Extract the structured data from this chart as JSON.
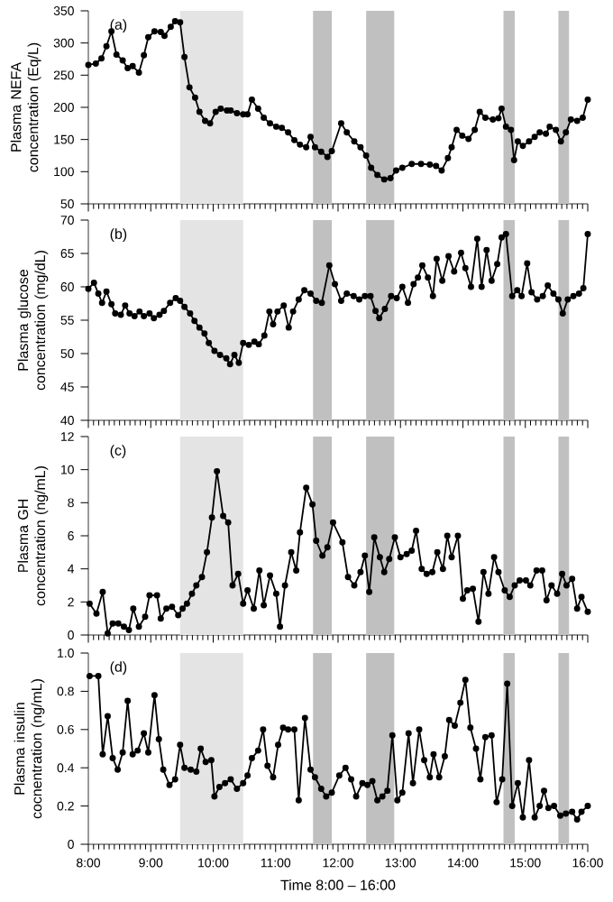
{
  "chart_data": [
    {
      "type": "line",
      "annotations": [
        "(a)"
      ],
      "ylabel": "Plasma NEFA concentration (Eq/L)",
      "xlim": [
        8,
        16
      ],
      "ylim": [
        50,
        350
      ],
      "yticks": [
        50,
        100,
        150,
        200,
        250,
        300,
        350
      ],
      "xticks": [
        {
          "value": 8,
          "label": null
        },
        {
          "value": 9,
          "label": null
        },
        {
          "value": 10,
          "label": null
        },
        {
          "value": 11,
          "label": null
        },
        {
          "value": 12,
          "label": null
        },
        {
          "value": 13,
          "label": null
        },
        {
          "value": 14,
          "label": null
        },
        {
          "value": 15,
          "label": null
        },
        {
          "value": 16,
          "label": null
        }
      ],
      "tick_labels": "y",
      "marker": "circle",
      "line_style": "solid",
      "bands": [
        {
          "axis": "x",
          "from": 9.47,
          "to": 10.48,
          "color": "#e4e4e4"
        },
        {
          "axis": "x",
          "from": 11.6,
          "to": 11.9,
          "color": "#c0c0c0"
        },
        {
          "axis": "x",
          "from": 12.45,
          "to": 12.9,
          "color": "#c0c0c0"
        },
        {
          "axis": "x",
          "from": 14.65,
          "to": 14.83,
          "color": "#c0c0c0"
        },
        {
          "axis": "x",
          "from": 15.53,
          "to": 15.7,
          "color": "#c0c0c0"
        }
      ],
      "series": [
        {
          "color": "#000000",
          "x": [
            8.0,
            8.12,
            8.21,
            8.29,
            8.37,
            8.45,
            8.55,
            8.63,
            8.71,
            8.81,
            8.89,
            8.96,
            9.06,
            9.16,
            9.22,
            9.32,
            9.39,
            9.47,
            9.54,
            9.62,
            9.71,
            9.78,
            9.87,
            9.95,
            10.04,
            10.12,
            10.22,
            10.28,
            10.38,
            10.48,
            10.55,
            10.62,
            10.72,
            10.81,
            10.91,
            11.01,
            11.1,
            11.2,
            11.3,
            11.39,
            11.49,
            11.56,
            11.63,
            11.73,
            11.83,
            11.9,
            12.05,
            12.14,
            12.26,
            12.36,
            12.45,
            12.53,
            12.63,
            12.74,
            12.84,
            12.93,
            13.03,
            13.18,
            13.33,
            13.47,
            13.57,
            13.66,
            13.76,
            13.82,
            13.9,
            13.99,
            14.09,
            14.19,
            14.27,
            14.36,
            14.48,
            14.57,
            14.62,
            14.69,
            14.77,
            14.82,
            14.88,
            14.96,
            15.06,
            15.15,
            15.23,
            15.33,
            15.39,
            15.49,
            15.57,
            15.65,
            15.73,
            15.83,
            15.92,
            16.0
          ],
          "values": [
            266,
            268,
            276,
            295,
            318,
            282,
            273,
            261,
            264,
            254,
            281,
            309,
            318,
            317,
            311,
            325,
            334,
            332,
            278,
            231,
            215,
            193,
            179,
            175,
            193,
            198,
            195,
            195,
            191,
            189,
            189,
            212,
            198,
            184,
            175,
            170,
            168,
            161,
            149,
            142,
            138,
            154,
            138,
            131,
            123,
            132,
            175,
            161,
            147,
            138,
            125,
            106,
            95,
            88,
            90,
            102,
            106,
            112,
            112,
            111,
            109,
            102,
            121,
            138,
            165,
            156,
            151,
            165,
            193,
            184,
            181,
            183,
            198,
            170,
            165,
            118,
            147,
            140,
            147,
            154,
            161,
            159,
            170,
            165,
            147,
            161,
            181,
            179,
            184,
            212
          ]
        }
      ]
    },
    {
      "type": "line",
      "annotations": [
        "(b)"
      ],
      "ylabel": "Plasma glucose concentration (mg/dL)",
      "xlim": [
        8,
        16
      ],
      "ylim": [
        40,
        70
      ],
      "yticks": [
        40,
        45,
        50,
        55,
        60,
        65,
        70
      ],
      "xticks": [
        {
          "value": 8,
          "label": null
        },
        {
          "value": 9,
          "label": null
        },
        {
          "value": 10,
          "label": null
        },
        {
          "value": 11,
          "label": null
        },
        {
          "value": 12,
          "label": null
        },
        {
          "value": 13,
          "label": null
        },
        {
          "value": 14,
          "label": null
        },
        {
          "value": 15,
          "label": null
        },
        {
          "value": 16,
          "label": null
        }
      ],
      "tick_labels": "y",
      "marker": "circle",
      "line_style": "solid",
      "bands": [
        {
          "axis": "x",
          "from": 9.47,
          "to": 10.48,
          "color": "#e4e4e4"
        },
        {
          "axis": "x",
          "from": 11.6,
          "to": 11.9,
          "color": "#c0c0c0"
        },
        {
          "axis": "x",
          "from": 12.45,
          "to": 12.9,
          "color": "#c0c0c0"
        },
        {
          "axis": "x",
          "from": 14.65,
          "to": 14.83,
          "color": "#c0c0c0"
        },
        {
          "axis": "x",
          "from": 15.53,
          "to": 15.7,
          "color": "#c0c0c0"
        }
      ],
      "series": [
        {
          "color": "#000000",
          "x": [
            8.0,
            8.09,
            8.16,
            8.22,
            8.29,
            8.37,
            8.43,
            8.52,
            8.59,
            8.66,
            8.74,
            8.82,
            8.89,
            8.98,
            9.05,
            9.14,
            9.21,
            9.31,
            9.4,
            9.47,
            9.54,
            9.63,
            9.7,
            9.78,
            9.86,
            9.93,
            10.02,
            10.11,
            10.21,
            10.27,
            10.34,
            10.41,
            10.48,
            10.57,
            10.66,
            10.73,
            10.82,
            10.9,
            10.96,
            11.03,
            11.13,
            11.21,
            11.28,
            11.37,
            11.46,
            11.56,
            11.65,
            11.74,
            11.86,
            11.95,
            12.05,
            12.14,
            12.25,
            12.34,
            12.43,
            12.52,
            12.6,
            12.66,
            12.75,
            12.85,
            12.94,
            13.03,
            13.12,
            13.21,
            13.28,
            13.35,
            13.44,
            13.52,
            13.58,
            13.67,
            13.77,
            13.86,
            13.97,
            14.04,
            14.13,
            14.23,
            14.3,
            14.38,
            14.46,
            14.55,
            14.62,
            14.69,
            14.79,
            14.87,
            14.94,
            15.03,
            15.1,
            15.19,
            15.28,
            15.36,
            15.45,
            15.53,
            15.6,
            15.68,
            15.77,
            15.86,
            15.93,
            16.0
          ],
          "values": [
            59.7,
            60.6,
            59.0,
            57.6,
            59.3,
            57.4,
            56.0,
            55.8,
            57.2,
            56.0,
            55.6,
            56.3,
            55.6,
            56.0,
            55.3,
            55.8,
            56.4,
            57.6,
            58.3,
            57.9,
            57.0,
            56.0,
            54.9,
            53.9,
            53.0,
            51.6,
            50.4,
            49.8,
            49.3,
            48.4,
            49.8,
            48.6,
            51.6,
            51.3,
            51.8,
            51.4,
            52.7,
            56.3,
            54.4,
            56.3,
            57.2,
            53.9,
            56.3,
            58.1,
            59.5,
            59.0,
            57.9,
            57.6,
            63.2,
            60.4,
            57.9,
            59.0,
            58.6,
            58.1,
            58.6,
            58.6,
            56.4,
            55.3,
            56.7,
            58.6,
            58.3,
            60.0,
            57.6,
            60.4,
            61.4,
            63.2,
            61.4,
            58.6,
            64.2,
            60.9,
            64.6,
            62.3,
            65.1,
            62.8,
            60.0,
            67.2,
            60.0,
            65.5,
            60.9,
            63.4,
            67.4,
            67.9,
            58.6,
            59.5,
            58.6,
            63.5,
            59.2,
            58.1,
            58.6,
            60.2,
            59.0,
            58.1,
            56.0,
            58.1,
            58.6,
            59.0,
            59.8,
            67.9
          ]
        }
      ]
    },
    {
      "type": "line",
      "annotations": [
        "(c)"
      ],
      "ylabel": "Plasma GH concentration (ng/mL)",
      "xlim": [
        8,
        16
      ],
      "ylim": [
        0,
        12
      ],
      "yticks": [
        0,
        2,
        4,
        6,
        8,
        10,
        12
      ],
      "xticks": [
        {
          "value": 8,
          "label": null
        },
        {
          "value": 9,
          "label": null
        },
        {
          "value": 10,
          "label": null
        },
        {
          "value": 11,
          "label": null
        },
        {
          "value": 12,
          "label": null
        },
        {
          "value": 13,
          "label": null
        },
        {
          "value": 14,
          "label": null
        },
        {
          "value": 15,
          "label": null
        },
        {
          "value": 16,
          "label": null
        }
      ],
      "tick_labels": "y",
      "marker": "circle",
      "line_style": "solid",
      "bands": [
        {
          "axis": "x",
          "from": 9.47,
          "to": 10.48,
          "color": "#e4e4e4"
        },
        {
          "axis": "x",
          "from": 11.6,
          "to": 11.9,
          "color": "#c0c0c0"
        },
        {
          "axis": "x",
          "from": 12.45,
          "to": 12.9,
          "color": "#c0c0c0"
        },
        {
          "axis": "x",
          "from": 14.65,
          "to": 14.83,
          "color": "#c0c0c0"
        },
        {
          "axis": "x",
          "from": 15.53,
          "to": 15.7,
          "color": "#c0c0c0"
        }
      ],
      "series": [
        {
          "color": "#000000",
          "x": [
            8.02,
            8.13,
            8.23,
            8.31,
            8.39,
            8.48,
            8.57,
            8.65,
            8.72,
            8.81,
            8.91,
            8.98,
            9.1,
            9.16,
            9.25,
            9.34,
            9.44,
            9.51,
            9.58,
            9.66,
            9.73,
            9.82,
            9.9,
            9.98,
            10.06,
            10.16,
            10.24,
            10.31,
            10.4,
            10.48,
            10.55,
            10.65,
            10.74,
            10.81,
            10.91,
            11.01,
            11.07,
            11.15,
            11.25,
            11.33,
            11.39,
            11.49,
            11.59,
            11.65,
            11.75,
            11.83,
            11.92,
            12.07,
            12.16,
            12.26,
            12.36,
            12.43,
            12.5,
            12.58,
            12.67,
            12.74,
            12.82,
            12.91,
            13.0,
            13.1,
            13.18,
            13.25,
            13.34,
            13.42,
            13.51,
            13.59,
            13.68,
            13.75,
            13.82,
            13.92,
            14.0,
            14.07,
            14.16,
            14.25,
            14.33,
            14.41,
            14.5,
            14.57,
            14.67,
            14.75,
            14.83,
            14.91,
            15.01,
            15.08,
            15.18,
            15.27,
            15.34,
            15.42,
            15.51,
            15.59,
            15.66,
            15.75,
            15.83,
            15.9,
            16.0
          ],
          "values": [
            1.9,
            1.3,
            2.6,
            0.1,
            0.7,
            0.7,
            0.5,
            0.3,
            1.6,
            0.5,
            1.1,
            2.4,
            2.4,
            1.0,
            1.6,
            1.7,
            1.2,
            1.6,
            1.9,
            2.5,
            3.0,
            3.5,
            5.0,
            7.1,
            9.9,
            7.2,
            6.8,
            3.0,
            3.7,
            1.9,
            2.7,
            1.6,
            3.9,
            1.8,
            3.6,
            2.5,
            0.5,
            3.0,
            5.0,
            3.9,
            6.2,
            8.9,
            7.9,
            5.7,
            4.8,
            5.3,
            6.8,
            5.6,
            3.5,
            3.0,
            3.8,
            4.8,
            2.6,
            5.9,
            4.7,
            3.8,
            4.6,
            5.9,
            4.7,
            4.9,
            5.1,
            6.3,
            4.0,
            3.7,
            3.8,
            5.0,
            4.0,
            6.0,
            4.7,
            6.0,
            2.2,
            2.7,
            2.8,
            0.8,
            3.8,
            2.5,
            4.7,
            3.8,
            2.7,
            2.3,
            3.0,
            3.3,
            3.3,
            3.0,
            3.9,
            3.9,
            2.1,
            3.0,
            2.5,
            3.7,
            3.0,
            3.4,
            1.6,
            2.3,
            1.4
          ]
        }
      ]
    },
    {
      "type": "line",
      "annotations": [
        "(d)"
      ],
      "ylabel": "Plasma insulin cocnentration (ng/mL)",
      "xlabel": "Time 8:00 – 16:00",
      "xlim": [
        8,
        16
      ],
      "ylim": [
        0,
        1
      ],
      "yticks": [
        0,
        {
          "value": 0.2,
          "label": "0.2"
        },
        {
          "value": 0.4,
          "label": "0.4"
        },
        {
          "value": 0.6,
          "label": "0.6"
        },
        {
          "value": 0.8,
          "label": "0.8"
        },
        {
          "value": 1,
          "label": "1.0"
        }
      ],
      "xticks": [
        {
          "value": 8,
          "label": "8:00"
        },
        {
          "value": 9,
          "label": "9:00"
        },
        {
          "value": 10,
          "label": "10:00"
        },
        {
          "value": 11,
          "label": "11:00"
        },
        {
          "value": 12,
          "label": "12:00"
        },
        {
          "value": 13,
          "label": "13:00"
        },
        {
          "value": 14,
          "label": "14:00"
        },
        {
          "value": 15,
          "label": "15:00"
        },
        {
          "value": 16,
          "label": "16:00"
        }
      ],
      "marker": "circle",
      "line_style": "solid",
      "bands": [
        {
          "axis": "x",
          "from": 9.47,
          "to": 10.48,
          "color": "#e4e4e4"
        },
        {
          "axis": "x",
          "from": 11.6,
          "to": 11.9,
          "color": "#c0c0c0"
        },
        {
          "axis": "x",
          "from": 12.45,
          "to": 12.9,
          "color": "#c0c0c0"
        },
        {
          "axis": "x",
          "from": 14.65,
          "to": 14.83,
          "color": "#c0c0c0"
        },
        {
          "axis": "x",
          "from": 15.53,
          "to": 15.7,
          "color": "#c0c0c0"
        }
      ],
      "series": [
        {
          "color": "#000000",
          "x": [
            8.02,
            8.16,
            8.23,
            8.31,
            8.39,
            8.47,
            8.55,
            8.63,
            8.71,
            8.79,
            8.89,
            8.96,
            9.06,
            9.13,
            9.2,
            9.3,
            9.39,
            9.47,
            9.54,
            9.64,
            9.73,
            9.8,
            9.88,
            9.97,
            10.02,
            10.1,
            10.19,
            10.28,
            10.38,
            10.48,
            10.55,
            10.62,
            10.72,
            10.8,
            10.87,
            10.96,
            11.04,
            11.12,
            11.2,
            11.3,
            11.37,
            11.47,
            11.56,
            11.63,
            11.73,
            11.81,
            11.9,
            12.02,
            12.12,
            12.21,
            12.29,
            12.39,
            12.47,
            12.55,
            12.63,
            12.71,
            12.79,
            12.87,
            12.95,
            13.03,
            13.13,
            13.2,
            13.3,
            13.38,
            13.47,
            13.53,
            13.62,
            13.71,
            13.78,
            13.87,
            13.96,
            14.04,
            14.12,
            14.21,
            14.28,
            14.36,
            14.46,
            14.54,
            14.63,
            14.71,
            14.79,
            14.88,
            14.96,
            15.06,
            15.15,
            15.23,
            15.3,
            15.37,
            15.46,
            15.56,
            15.65,
            15.75,
            15.83,
            15.9,
            16.0
          ],
          "values": [
            0.88,
            0.88,
            0.47,
            0.67,
            0.45,
            0.39,
            0.48,
            0.75,
            0.47,
            0.49,
            0.58,
            0.48,
            0.78,
            0.55,
            0.39,
            0.31,
            0.34,
            0.52,
            0.4,
            0.39,
            0.38,
            0.5,
            0.43,
            0.44,
            0.25,
            0.3,
            0.32,
            0.34,
            0.29,
            0.32,
            0.36,
            0.45,
            0.49,
            0.6,
            0.41,
            0.35,
            0.52,
            0.61,
            0.6,
            0.6,
            0.23,
            0.66,
            0.39,
            0.35,
            0.29,
            0.25,
            0.27,
            0.36,
            0.4,
            0.34,
            0.25,
            0.32,
            0.31,
            0.33,
            0.23,
            0.25,
            0.28,
            0.57,
            0.23,
            0.27,
            0.58,
            0.32,
            0.6,
            0.44,
            0.35,
            0.47,
            0.35,
            0.46,
            0.65,
            0.62,
            0.74,
            0.86,
            0.61,
            0.5,
            0.34,
            0.56,
            0.57,
            0.22,
            0.34,
            0.84,
            0.2,
            0.32,
            0.14,
            0.44,
            0.14,
            0.2,
            0.28,
            0.19,
            0.2,
            0.15,
            0.16,
            0.17,
            0.13,
            0.17,
            0.2
          ]
        }
      ]
    }
  ]
}
